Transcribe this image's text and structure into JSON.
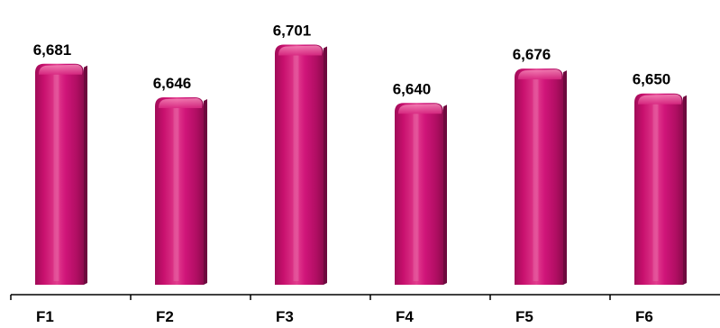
{
  "chart_data": {
    "type": "bar",
    "categories": [
      "F1",
      "F2",
      "F3",
      "F4",
      "F5",
      "F6"
    ],
    "values": [
      6681,
      6646,
      6701,
      6640,
      6676,
      6650
    ],
    "value_labels": [
      "6,681",
      "6,646",
      "6,701",
      "6,640",
      "6,676",
      "6,650"
    ],
    "title": "",
    "xlabel": "",
    "ylabel": "",
    "ylim": [
      6450,
      6710
    ],
    "grid": false,
    "legend": "none",
    "style": "3d-cylinder",
    "colors": {
      "bar": "#c8106e",
      "bar_light": "#f06aa8",
      "bar_dark": "#7a0a44",
      "axis": "#000000"
    }
  }
}
